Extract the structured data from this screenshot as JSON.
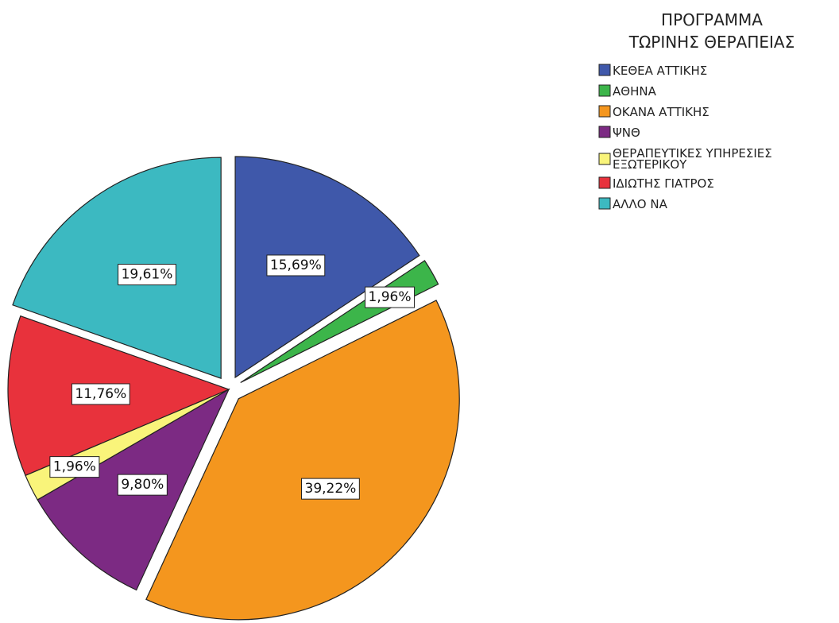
{
  "chart_data": {
    "type": "pie",
    "legend": {
      "title_lines": [
        "ΠΡΟΓΡΑΜΜΑ",
        "ΤΩΡΙΝΗΣ ΘΕΡΑΠΕΙΑΣ"
      ],
      "placement": "top-right"
    },
    "slices": [
      {
        "label_lines": [
          "ΚΕΘΕΑ ΑΤΤΙΚΗΣ"
        ],
        "value": 15.69,
        "value_label": "15,69%",
        "color": "#3F58AA",
        "exploded": true
      },
      {
        "label_lines": [
          "ΑΘΗΝΑ"
        ],
        "value": 1.96,
        "value_label": "1,96%",
        "color": "#3CB54A",
        "exploded": true
      },
      {
        "label_lines": [
          "ΟΚΑΝΑ ΑΤΤΙΚΗΣ"
        ],
        "value": 39.22,
        "value_label": "39,22%",
        "color": "#F4961E",
        "exploded": true
      },
      {
        "label_lines": [
          "ΨΝΘ"
        ],
        "value": 9.8,
        "value_label": "9,80%",
        "color": "#7C2A83",
        "exploded": false
      },
      {
        "label_lines": [
          "ΘΕΡΑΠΕΥΤΙΚΕΣ ΥΠΗΡΕΣΙΕΣ",
          "ΕΞΩΤΕΡΙΚΟΥ"
        ],
        "value": 1.96,
        "value_label": "1,96%",
        "color": "#F9F47A",
        "exploded": false
      },
      {
        "label_lines": [
          "ΙΔΙΩΤΗΣ ΓΙΑΤΡΟΣ"
        ],
        "value": 11.76,
        "value_label": "11,76%",
        "color": "#E8323C",
        "exploded": false
      },
      {
        "label_lines": [
          "ΑΛΛΟ ΝΑ"
        ],
        "value": 19.61,
        "value_label": "19,61%",
        "color": "#3CB9C1",
        "exploded": true
      }
    ]
  }
}
